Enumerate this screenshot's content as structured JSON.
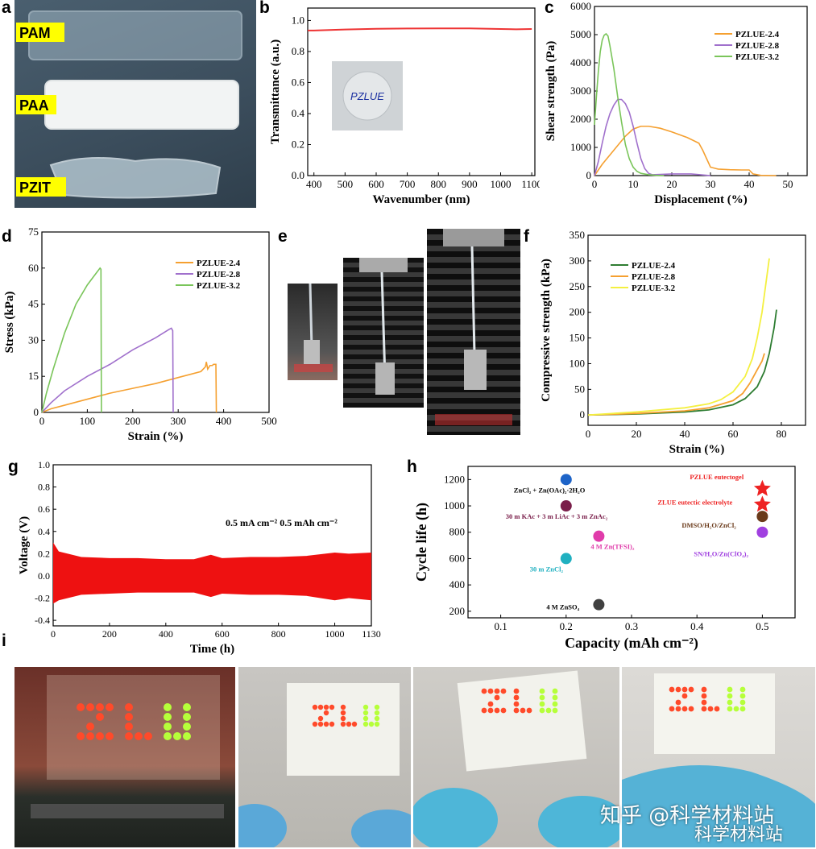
{
  "panel_letters": [
    "a",
    "b",
    "c",
    "d",
    "e",
    "f",
    "g",
    "h",
    "i"
  ],
  "photos": {
    "a_labels": [
      "PAM",
      "PAA",
      "PZIT"
    ],
    "b_inset_text": "PZLUE"
  },
  "watermark": {
    "line1": "知乎 @科学材料站",
    "line2": "科学材料站"
  },
  "colors": {
    "red": "#ee3333",
    "orange": "#f5a030",
    "purple": "#a070cc",
    "green_light": "#7ac55a",
    "green_dark": "#2e7d32",
    "yellow": "#f4f040",
    "grid_axis": "#000000"
  },
  "chart_data": [
    {
      "id": "b",
      "type": "line",
      "xlabel": "Wavenumber (nm)",
      "ylabel": "Transmittance (a.u.)",
      "xlim": [
        380,
        1110
      ],
      "ylim": [
        0,
        1.08
      ],
      "xticks": [
        400,
        500,
        600,
        700,
        800,
        900,
        1000,
        1100
      ],
      "yticks": [
        0.0,
        0.2,
        0.4,
        0.6,
        0.8,
        1.0
      ],
      "ytick_labels": [
        "0.0",
        "0.2",
        "0.4",
        "0.6",
        "0.8",
        "1.0"
      ],
      "series": [
        {
          "color": "#ee3333",
          "x": [
            380,
            400,
            500,
            600,
            700,
            800,
            900,
            1000,
            1050,
            1100
          ],
          "y": [
            0.935,
            0.935,
            0.942,
            0.946,
            0.948,
            0.949,
            0.949,
            0.945,
            0.943,
            0.945
          ]
        }
      ]
    },
    {
      "id": "c",
      "type": "line",
      "xlabel": "Displacement (%)",
      "ylabel": "Shear strength (Pa)",
      "xlim": [
        0,
        55
      ],
      "ylim": [
        0,
        6000
      ],
      "xticks": [
        0,
        10,
        20,
        30,
        40,
        50
      ],
      "yticks": [
        0,
        1000,
        2000,
        3000,
        4000,
        5000,
        6000
      ],
      "legend": "top-right",
      "series": [
        {
          "name": "PZLUE-2.4",
          "color": "#f5a030",
          "x": [
            0,
            2,
            5,
            8,
            10,
            12,
            14,
            17,
            20,
            24,
            27,
            28,
            29,
            30,
            32,
            35,
            38,
            40,
            41,
            43,
            47
          ],
          "y": [
            0,
            400,
            900,
            1400,
            1650,
            1750,
            1750,
            1680,
            1550,
            1350,
            1150,
            900,
            600,
            300,
            230,
            210,
            200,
            200,
            60,
            10,
            0
          ]
        },
        {
          "name": "PZLUE-2.8",
          "color": "#a070cc",
          "x": [
            0,
            1,
            2,
            3,
            4,
            5,
            6,
            7,
            8,
            9,
            10,
            11,
            12,
            13,
            14,
            15,
            17,
            20,
            25,
            30
          ],
          "y": [
            0,
            500,
            1150,
            1750,
            2200,
            2500,
            2700,
            2700,
            2550,
            2250,
            1750,
            1150,
            600,
            250,
            80,
            30,
            40,
            60,
            60,
            0
          ]
        },
        {
          "name": "PZLUE-3.2",
          "color": "#7ac55a",
          "x": [
            0,
            0.5,
            1,
            1.5,
            2,
            2.5,
            3,
            3.5,
            4,
            5,
            6,
            7,
            8,
            9,
            10,
            11,
            12,
            14,
            16,
            18
          ],
          "y": [
            1800,
            2800,
            3700,
            4400,
            4800,
            4980,
            5030,
            4950,
            4600,
            3800,
            2800,
            1900,
            1100,
            600,
            300,
            150,
            80,
            30,
            10,
            0
          ]
        }
      ]
    },
    {
      "id": "d",
      "type": "line",
      "xlabel": "Strain (%)",
      "ylabel": "Stress (kPa)",
      "xlim": [
        0,
        500
      ],
      "ylim": [
        0,
        75
      ],
      "xticks": [
        0,
        100,
        200,
        300,
        400,
        500
      ],
      "yticks": [
        0,
        15,
        30,
        45,
        60,
        75
      ],
      "legend": "top-right",
      "series": [
        {
          "name": "PZLUE-2.4",
          "color": "#f5a030",
          "x": [
            0,
            20,
            50,
            100,
            150,
            200,
            250,
            300,
            350,
            360,
            362,
            365,
            370,
            375,
            378,
            380,
            383,
            384
          ],
          "y": [
            0,
            1.5,
            3,
            5.5,
            8,
            10,
            12,
            14.5,
            17,
            19,
            21,
            18,
            19.5,
            19.5,
            20,
            20,
            20,
            0
          ]
        },
        {
          "name": "PZLUE-2.8",
          "color": "#a070cc",
          "x": [
            0,
            20,
            50,
            100,
            150,
            200,
            250,
            280,
            285,
            288,
            289
          ],
          "y": [
            0,
            4,
            9,
            15,
            20,
            26,
            31,
            34.5,
            35,
            34,
            0
          ]
        },
        {
          "name": "PZLUE-3.2",
          "color": "#7ac55a",
          "x": [
            0,
            10,
            25,
            50,
            75,
            100,
            120,
            128,
            130,
            131
          ],
          "y": [
            0,
            8,
            18,
            33,
            45,
            53,
            58,
            60,
            59.5,
            0
          ]
        }
      ]
    },
    {
      "id": "f",
      "type": "line",
      "xlabel": "Strain (%)",
      "ylabel": "Compressive strength (kPa)",
      "xlim": [
        0,
        90
      ],
      "ylim": [
        -20,
        350
      ],
      "xticks": [
        0,
        20,
        40,
        60,
        80
      ],
      "yticks": [
        0,
        50,
        100,
        150,
        200,
        250,
        300,
        350
      ],
      "legend": "top-left",
      "series": [
        {
          "name": "PZLUE-2.4",
          "color": "#2e7d32",
          "x": [
            0,
            20,
            40,
            50,
            60,
            65,
            70,
            73,
            75,
            77,
            78
          ],
          "y": [
            0,
            2,
            6,
            10,
            20,
            32,
            55,
            85,
            120,
            170,
            205
          ]
        },
        {
          "name": "PZLUE-2.8",
          "color": "#f5a030",
          "x": [
            0,
            20,
            40,
            50,
            60,
            64,
            67,
            70,
            72,
            73
          ],
          "y": [
            0,
            3,
            8,
            14,
            28,
            42,
            62,
            88,
            105,
            120
          ]
        },
        {
          "name": "PZLUE-3.2",
          "color": "#f4f040",
          "x": [
            0,
            20,
            40,
            50,
            55,
            60,
            65,
            68,
            70,
            72,
            74,
            75
          ],
          "y": [
            0,
            6,
            14,
            22,
            30,
            45,
            75,
            110,
            150,
            200,
            270,
            305
          ]
        }
      ]
    },
    {
      "id": "g",
      "type": "line",
      "xlabel": "Time (h)",
      "ylabel": "Voltage (V)",
      "xlim": [
        0,
        1130
      ],
      "ylim": [
        -0.45,
        1.0
      ],
      "xticks": [
        0,
        200,
        400,
        600,
        800,
        1000,
        1130
      ],
      "yticks": [
        -0.4,
        -0.2,
        0.0,
        0.2,
        0.4,
        0.6,
        0.8,
        1.0
      ],
      "ytick_labels": [
        "-0.4",
        "-0.2",
        "0.0",
        "0.2",
        "0.4",
        "0.6",
        "0.8",
        "1.0"
      ],
      "annotation": "0.5 mA cm⁻²    0.5 mAh cm⁻²",
      "series": [
        {
          "color": "#ee1111",
          "x": [
            0,
            20,
            100,
            200,
            300,
            400,
            500,
            560,
            600,
            700,
            800,
            900,
            1000,
            1050,
            1130
          ],
          "upper": [
            0.3,
            0.22,
            0.17,
            0.16,
            0.16,
            0.15,
            0.15,
            0.19,
            0.16,
            0.17,
            0.17,
            0.18,
            0.21,
            0.2,
            0.21
          ],
          "lower": [
            -0.25,
            -0.22,
            -0.17,
            -0.16,
            -0.15,
            -0.15,
            -0.15,
            -0.19,
            -0.16,
            -0.17,
            -0.17,
            -0.18,
            -0.22,
            -0.2,
            -0.22
          ]
        }
      ]
    },
    {
      "id": "h",
      "type": "scatter",
      "xlabel": "Capacity (mAh cm⁻²)",
      "ylabel": "Cycle life (h)",
      "xlim": [
        0.05,
        0.55
      ],
      "ylim": [
        150,
        1300
      ],
      "xticks": [
        0.1,
        0.2,
        0.3,
        0.4,
        0.5
      ],
      "yticks": [
        200,
        400,
        600,
        800,
        1000,
        1200
      ],
      "xtick_labels": [
        "0.1",
        "0.2",
        "0.3",
        "0.4",
        "0.5"
      ],
      "points": [
        {
          "x": 0.2,
          "y": 1200,
          "color": "#1e64c8",
          "label": "ZnCl₂ + Zn(OAc)₂·2H₂O",
          "label_color": "#000000",
          "shape": "ball"
        },
        {
          "x": 0.2,
          "y": 1000,
          "color": "#7a1e4a",
          "label": "30 m KAc + 3 m LiAc + 3 m ZnAc₂",
          "label_color": "#7a1e4a",
          "shape": "ball"
        },
        {
          "x": 0.25,
          "y": 770,
          "color": "#e03caa",
          "label": "4 M Zn(TFSI)₂",
          "label_color": "#e03caa",
          "shape": "ball"
        },
        {
          "x": 0.2,
          "y": 600,
          "color": "#20b0c0",
          "label": "30 m ZnCl₂",
          "label_color": "#20b0c0",
          "shape": "ball"
        },
        {
          "x": 0.25,
          "y": 250,
          "color": "#404040",
          "label": "4 M ZnSO₄",
          "label_color": "#000000",
          "shape": "ball"
        },
        {
          "x": 0.5,
          "y": 1130,
          "color": "#ee2222",
          "label": "PZLUE eutectogel",
          "label_color": "#ee2222",
          "shape": "star"
        },
        {
          "x": 0.5,
          "y": 1010,
          "color": "#ee2222",
          "label": "ZLUE eutectic electrolyte",
          "label_color": "#ee2222",
          "shape": "star"
        },
        {
          "x": 0.5,
          "y": 920,
          "color": "#6a3a1a",
          "label": "DMSO/H₂O/ZnCl₂",
          "label_color": "#6a3a1a",
          "shape": "ball"
        },
        {
          "x": 0.5,
          "y": 800,
          "color": "#a040e0",
          "label": "SN/H₂O/Zn(ClO₄)₂",
          "label_color": "#a040e0",
          "shape": "ball"
        }
      ]
    }
  ]
}
